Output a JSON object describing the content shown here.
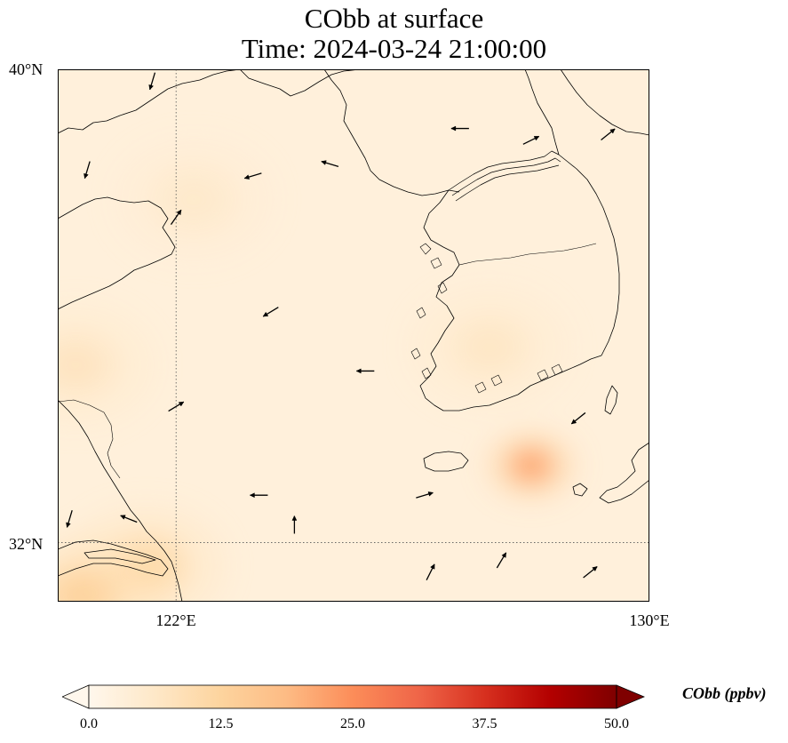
{
  "title": {
    "line1": "CObb at surface",
    "line2": "Time: 2024-03-24 21:00:00"
  },
  "axes": {
    "lat_labels": [
      "40°N",
      "32°N"
    ],
    "lon_labels": [
      "122°E",
      "130°E"
    ],
    "lat_range": [
      31,
      40
    ],
    "lon_range": [
      120,
      130
    ],
    "gridlines": {
      "lats": [
        32
      ],
      "lons": [
        122
      ],
      "style": "dotted"
    }
  },
  "colorbar": {
    "label": "CObb (ppbv)",
    "ticks": [
      "0.0",
      "12.5",
      "25.0",
      "37.5",
      "50.0"
    ],
    "min": 0,
    "max": 50,
    "colormap": "OrRd",
    "colors": [
      "#fff7ec",
      "#fee8c8",
      "#fdd49e",
      "#fdbb84",
      "#fc8d59",
      "#ef6548",
      "#d7301f",
      "#b30000",
      "#7f0000"
    ],
    "extend": "both"
  },
  "field": {
    "variable": "CObb",
    "level": "surface",
    "units": "ppbv",
    "background_ppbv": 3,
    "hotspots": [
      {
        "lon": 128.0,
        "lat": 33.3,
        "ppbv": 25
      },
      {
        "lon": 121.5,
        "lat": 31.6,
        "ppbv": 12
      },
      {
        "lon": 120.4,
        "lat": 31.1,
        "ppbv": 14
      },
      {
        "lon": 120.3,
        "lat": 35.0,
        "ppbv": 8
      },
      {
        "lon": 127.3,
        "lat": 35.3,
        "ppbv": 7
      },
      {
        "lon": 122.3,
        "lat": 37.8,
        "ppbv": 6
      }
    ]
  },
  "wind_vectors": {
    "description": "surface wind arrows",
    "samples": [
      {
        "lon": 121.6,
        "lat": 39.8,
        "u": -0.3,
        "v": -1
      },
      {
        "lon": 120.5,
        "lat": 38.3,
        "u": -0.3,
        "v": -1
      },
      {
        "lon": 123.3,
        "lat": 38.2,
        "u": -1,
        "v": -0.3
      },
      {
        "lon": 124.6,
        "lat": 38.4,
        "u": -1,
        "v": 0.3
      },
      {
        "lon": 126.8,
        "lat": 39.0,
        "u": -1,
        "v": 0
      },
      {
        "lon": 128.0,
        "lat": 38.8,
        "u": 1,
        "v": 0.5
      },
      {
        "lon": 129.3,
        "lat": 38.9,
        "u": 1,
        "v": 0.8
      },
      {
        "lon": 123.6,
        "lat": 35.9,
        "u": -1,
        "v": -0.6
      },
      {
        "lon": 122.0,
        "lat": 34.3,
        "u": 1,
        "v": 0.6
      },
      {
        "lon": 125.2,
        "lat": 34.9,
        "u": -1,
        "v": 0
      },
      {
        "lon": 123.4,
        "lat": 32.8,
        "u": -1,
        "v": 0
      },
      {
        "lon": 126.2,
        "lat": 32.8,
        "u": 1,
        "v": 0.3
      },
      {
        "lon": 128.8,
        "lat": 34.1,
        "u": -1,
        "v": -0.8
      },
      {
        "lon": 121.2,
        "lat": 32.4,
        "u": -1,
        "v": 0.4
      },
      {
        "lon": 124.0,
        "lat": 32.3,
        "u": 0,
        "v": 1
      },
      {
        "lon": 127.5,
        "lat": 31.7,
        "u": 0.6,
        "v": 1
      },
      {
        "lon": 129.0,
        "lat": 31.5,
        "u": 1,
        "v": 0.8
      },
      {
        "lon": 120.2,
        "lat": 32.4,
        "u": -0.3,
        "v": -1
      },
      {
        "lon": 126.3,
        "lat": 31.5,
        "u": 0.5,
        "v": 1
      },
      {
        "lon": 122.0,
        "lat": 37.5,
        "u": 0.7,
        "v": 1
      }
    ]
  }
}
